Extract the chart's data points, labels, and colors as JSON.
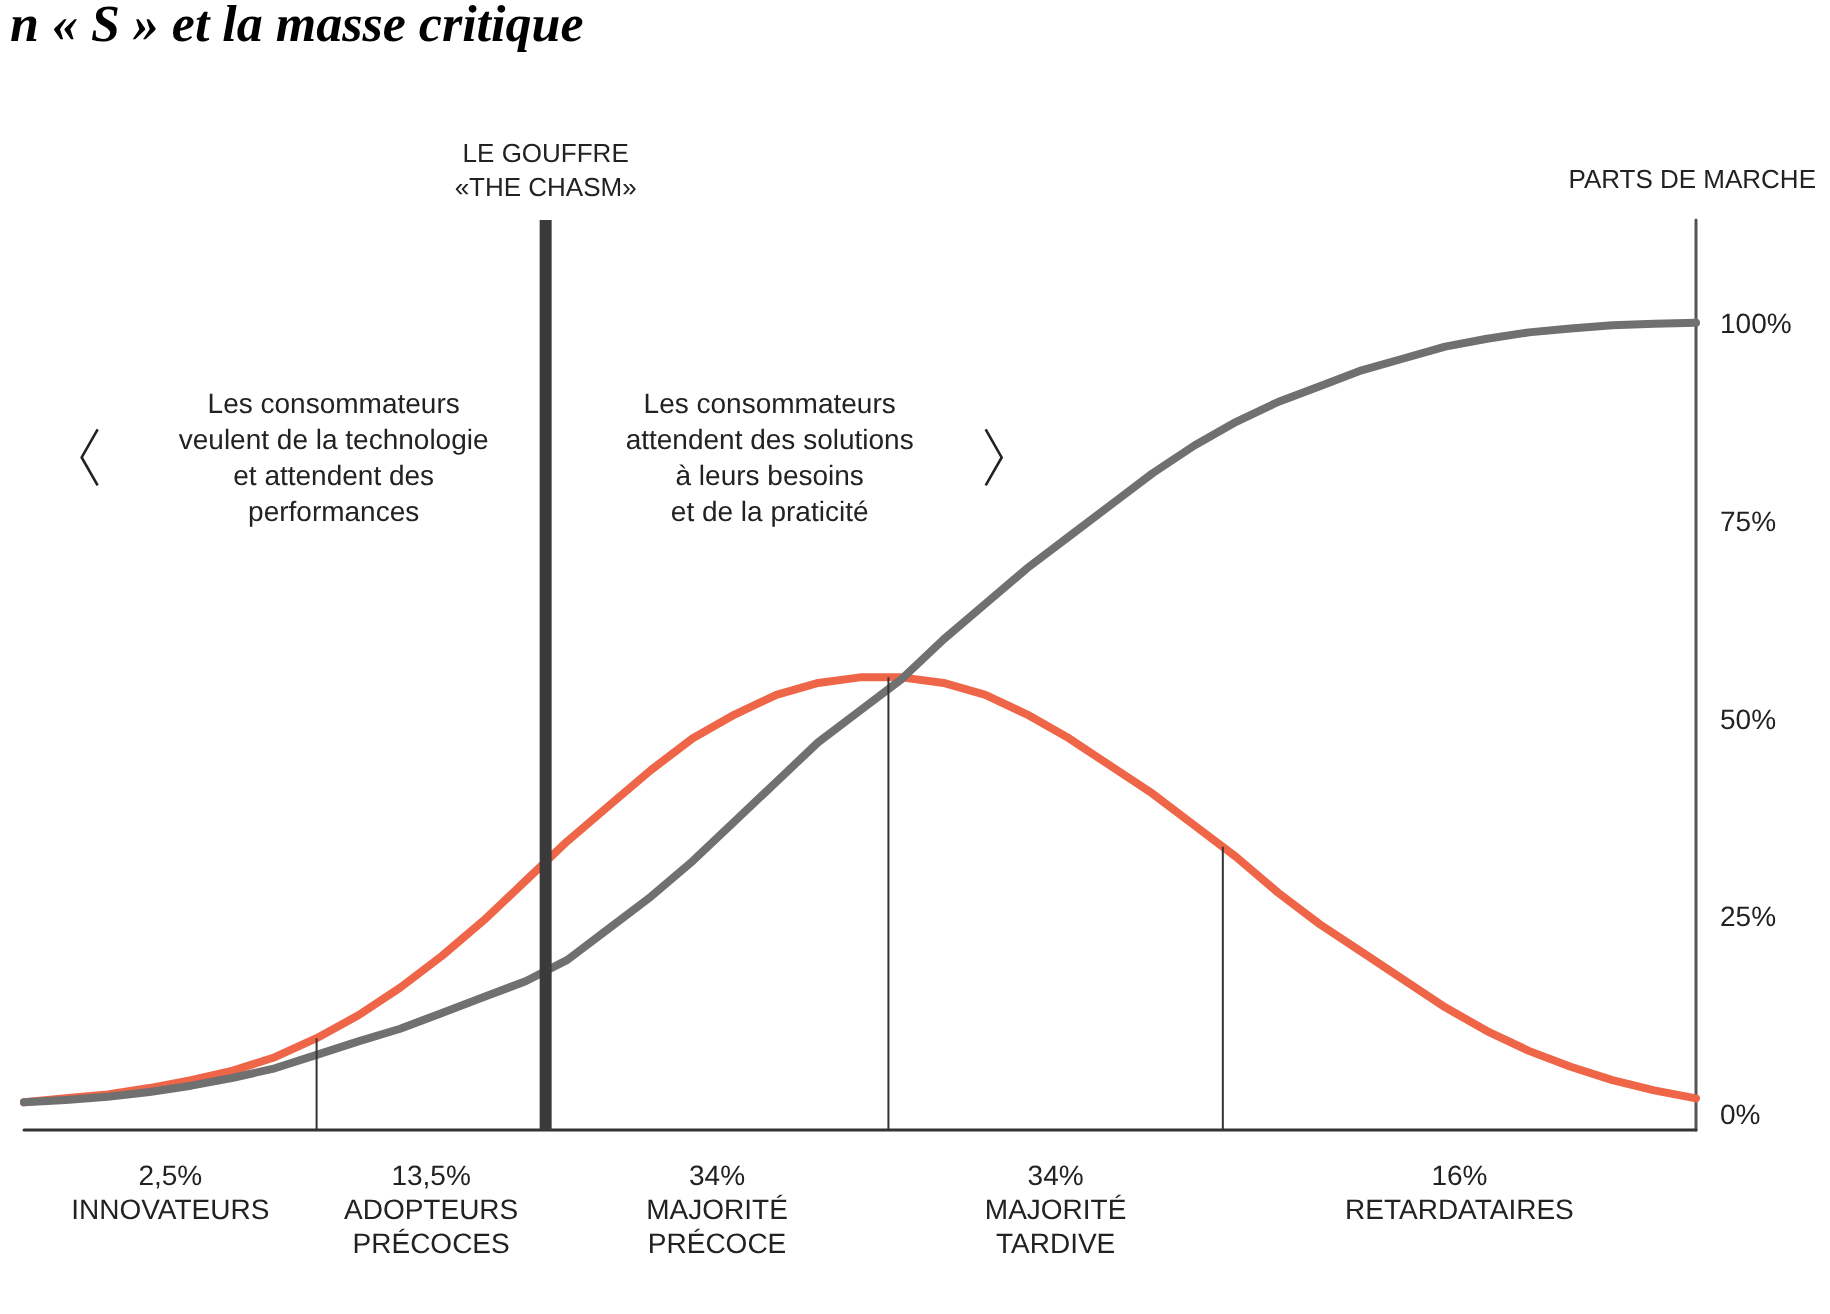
{
  "chart_data": {
    "type": "line",
    "title": "n « S » et la masse critique",
    "ylabel": "PARTS DE MARCHE",
    "categories": [
      null,
      null,
      null,
      null,
      null,
      null,
      null,
      null,
      null,
      null,
      null,
      null,
      null,
      null,
      null,
      null,
      null,
      null,
      null,
      null,
      null,
      null,
      null,
      null,
      null,
      null,
      null,
      null,
      null,
      null,
      null,
      null,
      null,
      null,
      null,
      null,
      null,
      null,
      null,
      null,
      null
    ],
    "ylim": [
      -2,
      113
    ],
    "yticks": [
      {
        "value": 0,
        "label": "0%"
      },
      {
        "value": 25,
        "label": "25%"
      },
      {
        "value": 50,
        "label": "50%"
      },
      {
        "value": 75,
        "label": "75%"
      },
      {
        "value": 100,
        "label": "100%"
      }
    ],
    "tick_labels": "y",
    "grid": false,
    "marker": "none",
    "line_style": "solid",
    "series": [
      {
        "color": "#ef6548",
        "values": [
          1.5,
          2,
          2.5,
          3.3,
          4.3,
          5.5,
          7.2,
          9.6,
          12.5,
          16,
          20,
          24.5,
          29.5,
          34.5,
          39,
          43.5,
          47.5,
          50.5,
          53,
          54.5,
          55.2,
          55.2,
          54.5,
          53,
          50.5,
          47.5,
          44,
          40.5,
          36.5,
          32.5,
          28,
          24,
          20.5,
          17,
          13.5,
          10.5,
          8,
          6,
          4.3,
          3,
          2
        ]
      },
      {
        "color": "#707070",
        "values": [
          1.5,
          1.8,
          2.2,
          2.8,
          3.6,
          4.6,
          5.8,
          7.5,
          9.2,
          10.8,
          12.8,
          14.8,
          16.8,
          19.5,
          23.5,
          27.5,
          32,
          37,
          42,
          47,
          51,
          55,
          60,
          64.5,
          69,
          73,
          77,
          81,
          84.5,
          87.5,
          90,
          92,
          94,
          95.5,
          97,
          98,
          98.8,
          99.3,
          99.7,
          99.9,
          100
        ]
      }
    ],
    "annotations": [
      "LE GOUFFRE\n«THE CHASM»",
      "Les consommateurs\nveulent de la technologie\net attendent des\nperformances",
      "Les consommateurs\nattendent des solutions\nà leurs besoins\net de la praticité",
      "2,5%\nINNOVATEURS",
      "13,5%\nADOPTEURS\nPRÉCOCES",
      "34%\nMAJORITÉ\nPRÉCOCE",
      "34%\nMAJORITÉ\nTARDIVE",
      "16%\nRETARDATAIRES"
    ]
  }
}
